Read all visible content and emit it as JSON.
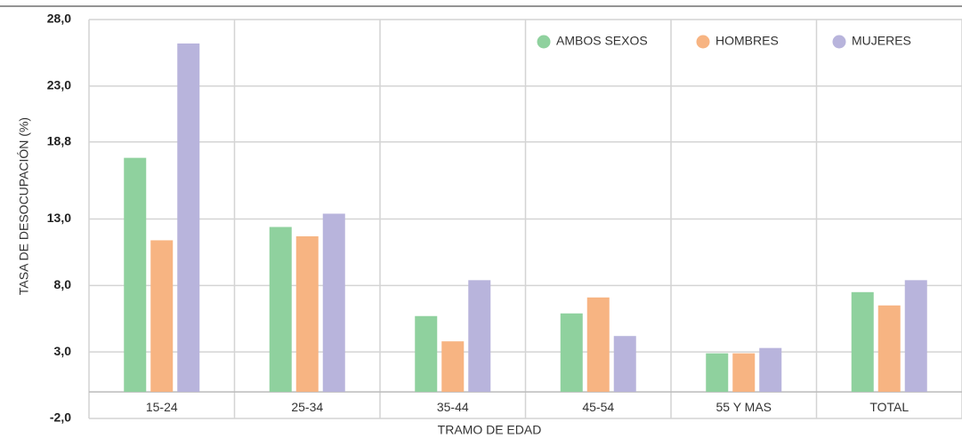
{
  "chart_data": {
    "type": "bar",
    "x_label": "TRAMO DE EDAD",
    "y_label": "TASA DE DESOCUPACIÓN (%)",
    "categories": [
      "15-24",
      "25-34",
      "35-44",
      "45-54",
      "55 Y MAS",
      "TOTAL"
    ],
    "series": [
      {
        "name": "AMBOS SEXOS",
        "color": "#8fd19e",
        "values": [
          17.6,
          12.4,
          5.7,
          5.9,
          2.9,
          7.5
        ]
      },
      {
        "name": "HOMBRES",
        "color": "#f7b482",
        "values": [
          11.4,
          11.7,
          3.8,
          7.1,
          2.9,
          6.5
        ]
      },
      {
        "name": "MUJERES",
        "color": "#b8b4dc",
        "values": [
          26.2,
          13.4,
          8.4,
          4.2,
          3.3,
          8.4
        ]
      }
    ],
    "ylim": [
      -2,
      28
    ],
    "yticks": [
      {
        "value": -2,
        "label": "-2,0"
      },
      {
        "value": 3,
        "label": "3,0"
      },
      {
        "value": 8,
        "label": "8,0"
      },
      {
        "value": 13,
        "label": "13,0"
      },
      {
        "value": 18.8,
        "label": "18,8"
      },
      {
        "value": 23,
        "label": "23,0"
      },
      {
        "value": 28,
        "label": "28,0"
      }
    ],
    "grid": true,
    "legend": "top-right"
  }
}
